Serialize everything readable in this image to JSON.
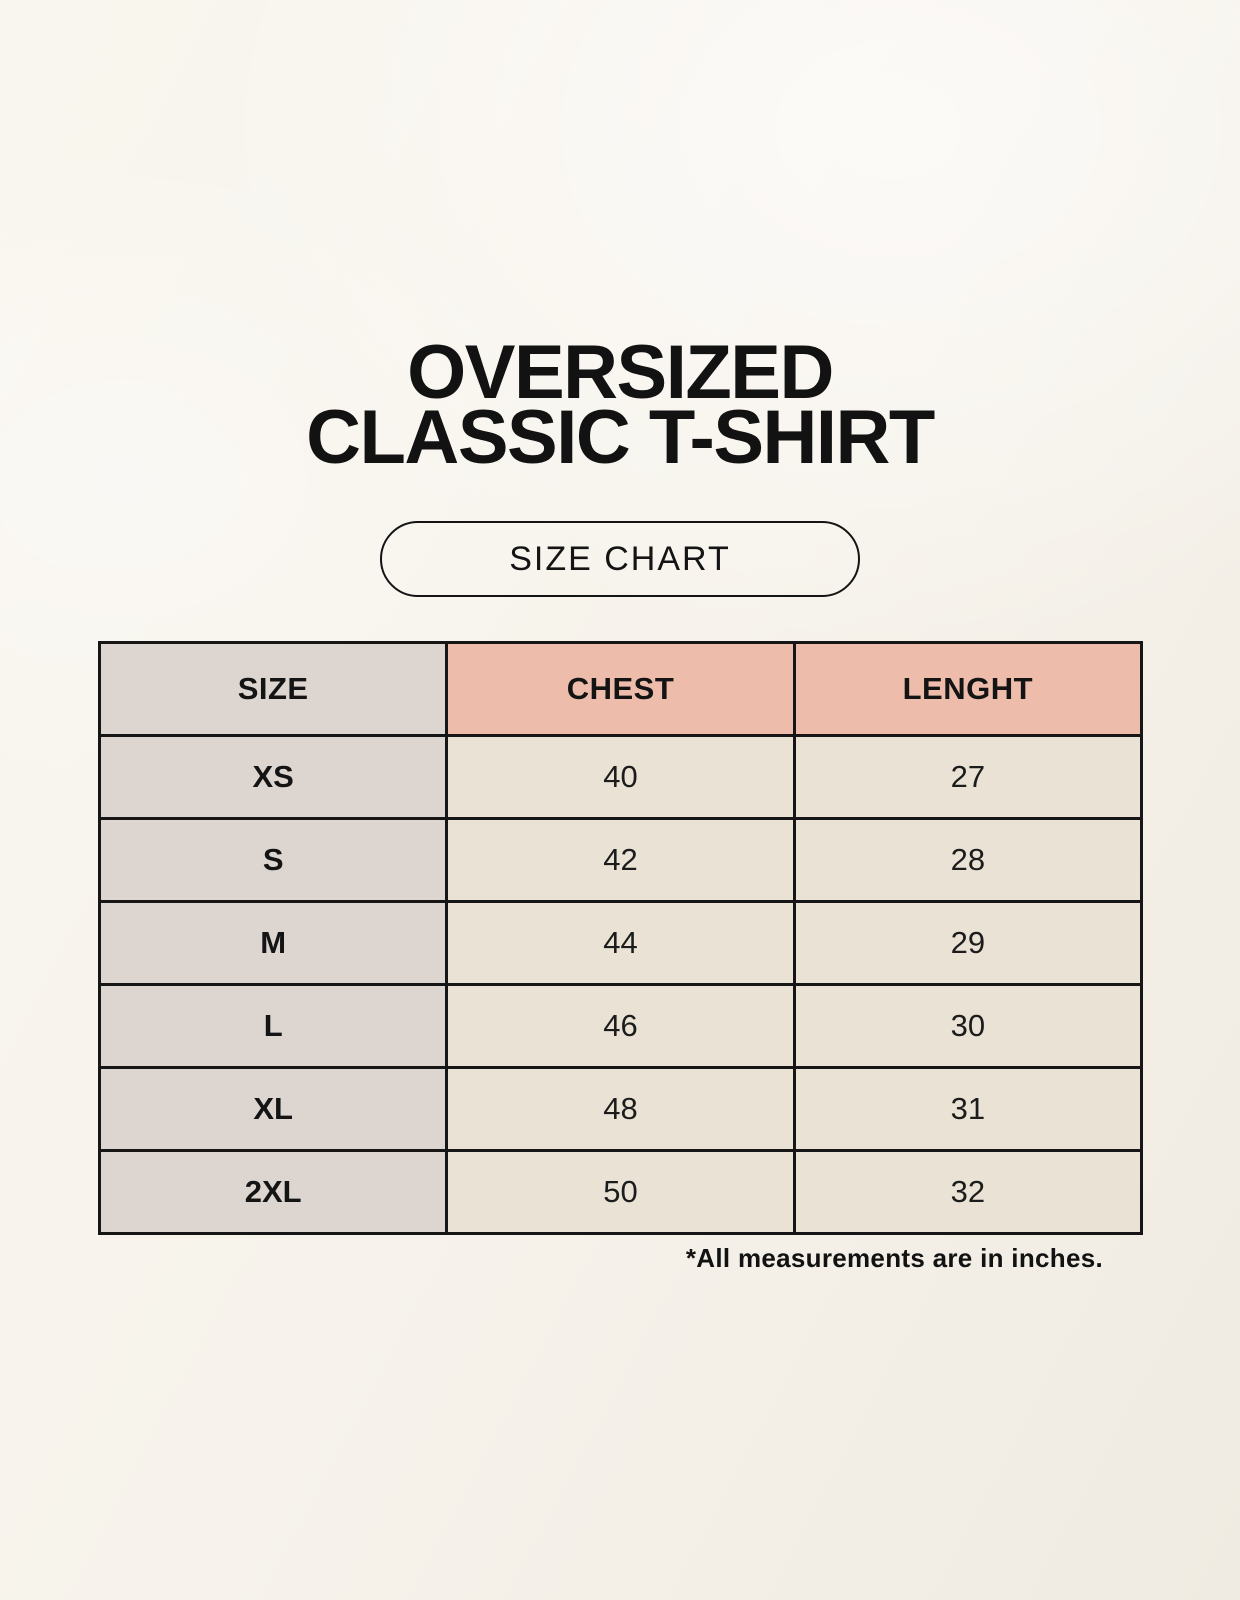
{
  "chart_data": {
    "type": "table",
    "title": "OVERSIZED CLASSIC T-SHIRT",
    "subtitle": "SIZE CHART",
    "columns": [
      "SIZE",
      "CHEST",
      "LENGHT"
    ],
    "rows": [
      [
        "XS",
        40,
        27
      ],
      [
        "S",
        42,
        28
      ],
      [
        "M",
        44,
        29
      ],
      [
        "L",
        46,
        30
      ],
      [
        "XL",
        48,
        31
      ],
      [
        "2XL",
        50,
        32
      ]
    ],
    "footnote": "*All measurements are in inches.",
    "units": "inches"
  },
  "title": {
    "line1": "OVERSIZED",
    "line2": "CLASSIC T-SHIRT"
  },
  "size_chart_button": {
    "label": "SIZE CHART"
  },
  "table": {
    "headers": {
      "size": "SIZE",
      "chest": "CHEST",
      "length": "LENGHT"
    },
    "rows": [
      {
        "size": "XS",
        "chest": "40",
        "length": "27"
      },
      {
        "size": "S",
        "chest": "42",
        "length": "28"
      },
      {
        "size": "M",
        "chest": "44",
        "length": "29"
      },
      {
        "size": "L",
        "chest": "46",
        "length": "30"
      },
      {
        "size": "XL",
        "chest": "48",
        "length": "31"
      },
      {
        "size": "2XL",
        "chest": "50",
        "length": "32"
      }
    ]
  },
  "footnote": "*All measurements are in inches.",
  "colors": {
    "page_background": "#f7f3ec",
    "header_accent": "#eebcab",
    "neutral_gray": "#ddd6d0",
    "cell_cream": "#e9e2d5",
    "table_border": "#161616",
    "text": "#141414"
  }
}
